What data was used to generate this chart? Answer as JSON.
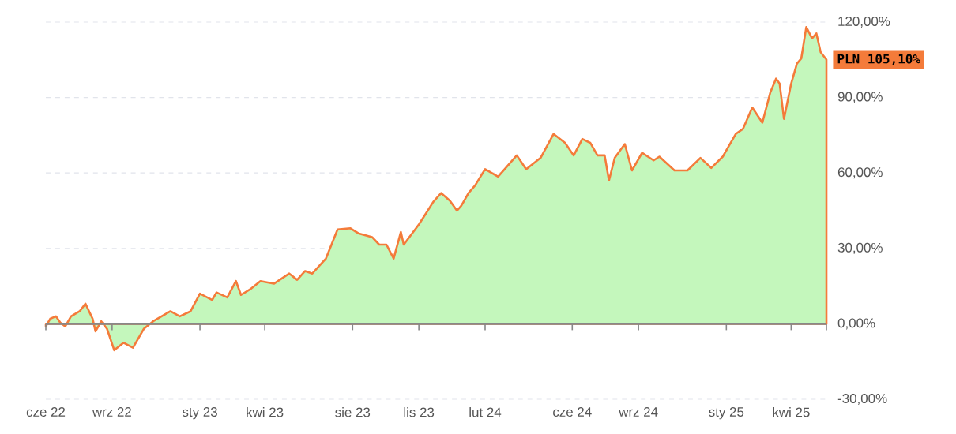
{
  "chart_data": {
    "type": "area",
    "color": "#f47b3a",
    "line_style": "solid",
    "marker": "none",
    "grid": "y",
    "x": [
      "2022-06-01",
      "2022-06-07",
      "2022-06-15",
      "2022-06-21",
      "2022-06-28",
      "2022-07-06",
      "2022-07-18",
      "2022-07-26",
      "2022-08-05",
      "2022-08-09",
      "2022-08-17",
      "2022-08-25",
      "2022-09-04",
      "2022-09-17",
      "2022-09-30",
      "2022-10-15",
      "2022-10-28",
      "2022-11-21",
      "2022-12-04",
      "2022-12-19",
      "2023-01-01",
      "2023-01-18",
      "2023-01-24",
      "2023-02-08",
      "2023-02-20",
      "2023-02-27",
      "2023-03-13",
      "2023-03-26",
      "2023-04-14",
      "2023-05-05",
      "2023-05-16",
      "2023-05-27",
      "2023-06-06",
      "2023-06-25",
      "2023-07-11",
      "2023-07-29",
      "2023-08-09",
      "2023-08-28",
      "2023-09-07",
      "2023-09-17",
      "2023-09-27",
      "2023-10-07",
      "2023-10-11",
      "2023-11-01",
      "2023-11-11",
      "2023-11-21",
      "2023-12-02",
      "2023-12-14",
      "2023-12-24",
      "2023-12-30",
      "2024-01-09",
      "2024-01-18",
      "2024-02-01",
      "2024-02-19",
      "2024-03-16",
      "2024-03-29",
      "2024-04-18",
      "2024-05-06",
      "2024-05-22",
      "2024-06-03",
      "2024-06-15",
      "2024-06-26",
      "2024-07-06",
      "2024-07-16",
      "2024-07-22",
      "2024-07-30",
      "2024-08-13",
      "2024-08-23",
      "2024-09-06",
      "2024-09-22",
      "2024-09-30",
      "2024-10-21",
      "2024-11-08",
      "2024-11-26",
      "2024-12-11",
      "2024-12-27",
      "2025-01-05",
      "2025-01-14",
      "2025-01-24",
      "2025-02-06",
      "2025-02-20",
      "2025-03-03",
      "2025-03-11",
      "2025-03-16",
      "2025-03-22",
      "2025-04-01",
      "2025-04-09",
      "2025-04-15",
      "2025-04-22",
      "2025-04-30",
      "2025-05-06",
      "2025-05-12",
      "2025-05-20"
    ],
    "values": [
      -1,
      2,
      3,
      0.5,
      -1,
      3,
      5,
      8,
      2,
      -3,
      1,
      -2,
      -10.5,
      -7.5,
      -9.5,
      -2,
      1,
      5,
      3,
      5,
      12,
      9.5,
      12.5,
      10.5,
      17,
      11.5,
      14,
      17,
      16,
      20,
      17.5,
      21,
      20,
      26,
      37.5,
      38,
      36,
      34.5,
      31.5,
      31.5,
      26,
      36.5,
      31.5,
      39.5,
      44,
      48.5,
      52,
      49,
      45,
      47,
      52,
      55,
      61.5,
      58.5,
      67,
      61.5,
      66,
      75.5,
      72,
      67,
      73.5,
      72,
      67,
      67,
      57,
      66,
      71.5,
      61,
      68,
      65,
      66.5,
      61,
      61,
      66,
      62,
      66.5,
      71,
      75.5,
      77.5,
      86,
      80,
      92,
      97.5,
      95.5,
      81.5,
      95.5,
      103.5,
      105.5,
      118,
      113.5,
      115.5,
      108,
      105.1
    ],
    "xlim": [
      "2022-06-01",
      "2025-05-20"
    ],
    "xticks": [
      {
        "value": "2022-06-01",
        "label": "cze 22"
      },
      {
        "value": "2022-09-01",
        "label": "wrz 22"
      },
      {
        "value": "2023-01-01",
        "label": "sty 23"
      },
      {
        "value": "2023-04-01",
        "label": "kwi 23"
      },
      {
        "value": "2023-08-01",
        "label": "sie 23"
      },
      {
        "value": "2023-11-01",
        "label": "lis 23"
      },
      {
        "value": "2024-02-01",
        "label": "lut 24"
      },
      {
        "value": "2024-06-01",
        "label": "cze 24"
      },
      {
        "value": "2024-09-01",
        "label": "wrz 24"
      },
      {
        "value": "2025-01-01",
        "label": "sty 25"
      },
      {
        "value": "2025-04-01",
        "label": "kwi 25"
      }
    ],
    "ylim": [
      -30,
      120
    ],
    "yticks": [
      {
        "value": -30,
        "label": "-30,00%"
      },
      {
        "value": 0,
        "label": "0,00%"
      },
      {
        "value": 30,
        "label": "30,00%"
      },
      {
        "value": 60,
        "label": "60,00%"
      },
      {
        "value": 90,
        "label": "90,00%"
      },
      {
        "value": 120,
        "label": "120,00%"
      }
    ],
    "annotations": [
      {
        "text": "PLN 105,10%",
        "x": "2025-05-20",
        "y": 105.1
      }
    ]
  }
}
